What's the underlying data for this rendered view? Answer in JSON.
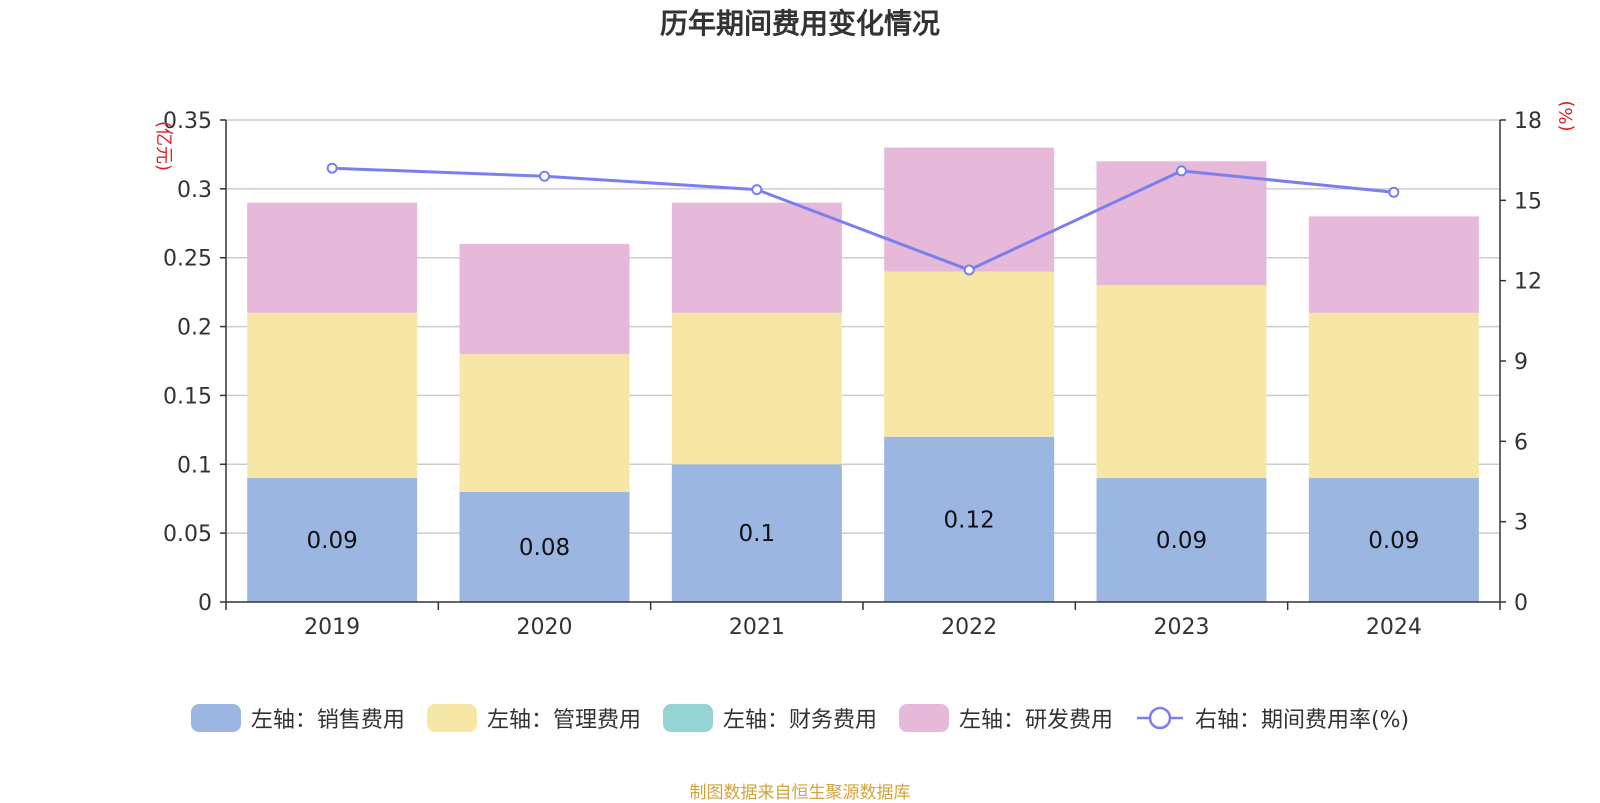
{
  "chart_data": {
    "type": "bar",
    "title": "历年期间费用变化情况",
    "categories": [
      "2019",
      "2020",
      "2021",
      "2022",
      "2023",
      "2024"
    ],
    "stacked": true,
    "left_axis": {
      "unit_label": "(亿元)",
      "ylim": [
        0,
        0.35
      ],
      "ticks": [
        "0",
        "0.05",
        "0.1",
        "0.15",
        "0.2",
        "0.25",
        "0.3",
        "0.35"
      ]
    },
    "right_axis": {
      "unit_label": "(%)",
      "ylim": [
        0,
        18
      ],
      "ticks": [
        "0",
        "3",
        "6",
        "9",
        "12",
        "15",
        "18"
      ]
    },
    "series": [
      {
        "name": "左轴：销售费用",
        "type": "bar",
        "axis": "left",
        "color": "#9bb7e1",
        "values": [
          0.09,
          0.08,
          0.1,
          0.12,
          0.09,
          0.09
        ],
        "labels": [
          "0.09",
          "0.08",
          "0.1",
          "0.12",
          "0.09",
          "0.09"
        ]
      },
      {
        "name": "左轴：管理费用",
        "type": "bar",
        "axis": "left",
        "color": "#f7e7a7",
        "values": [
          0.12,
          0.1,
          0.11,
          0.12,
          0.14,
          0.12
        ]
      },
      {
        "name": "左轴：财务费用",
        "type": "bar",
        "axis": "left",
        "color": "#96d4d4",
        "values": [
          0,
          0,
          0,
          0,
          0,
          0
        ]
      },
      {
        "name": "左轴：研发费用",
        "type": "bar",
        "axis": "left",
        "color": "#e6b8d9",
        "values": [
          0.08,
          0.08,
          0.08,
          0.09,
          0.09,
          0.07
        ]
      },
      {
        "name": "右轴：期间费用率(%)",
        "type": "line",
        "axis": "right",
        "color": "#7a7ff0",
        "values": [
          16.2,
          15.9,
          15.4,
          12.4,
          16.1,
          15.3
        ]
      }
    ],
    "grid": true,
    "legend_position": "bottom"
  },
  "source_note": "制图数据来自恒生聚源数据库"
}
